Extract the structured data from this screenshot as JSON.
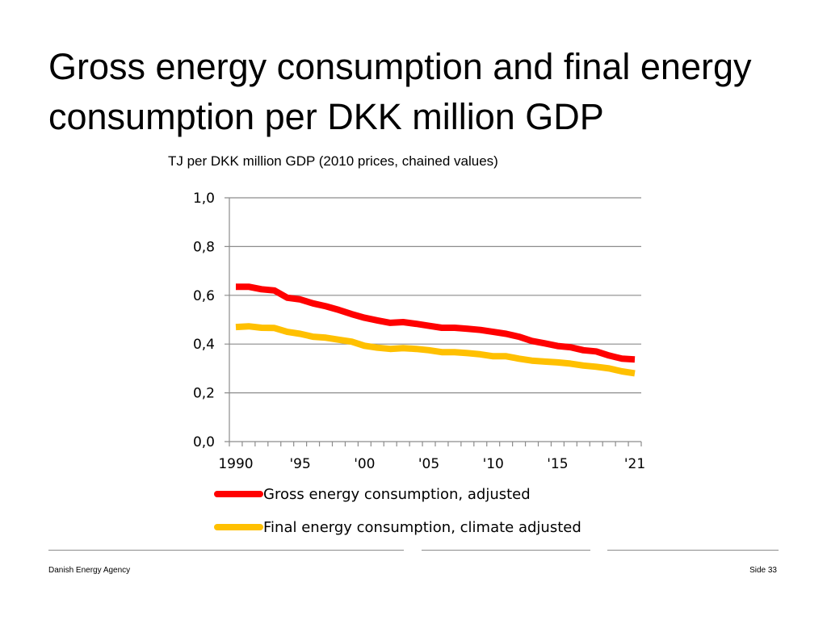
{
  "slide": {
    "title": "Gross energy consumption and final energy consumption per DKK million GDP",
    "footer_left": "Danish Energy Agency",
    "footer_right": "Side 33"
  },
  "chart_data": {
    "type": "line",
    "title": "TJ per DKK million GDP (2010 prices, chained values)",
    "xlabel": "",
    "ylabel": "",
    "ylim": [
      0,
      1.0
    ],
    "yticks": [
      0.0,
      0.2,
      0.4,
      0.6,
      0.8,
      1.0
    ],
    "ytick_labels": [
      "0,0",
      "0,2",
      "0,4",
      "0,6",
      "0,8",
      "1,0"
    ],
    "xticks": [
      1990,
      1995,
      2000,
      2005,
      2010,
      2015,
      2021
    ],
    "xtick_labels": [
      "1990",
      "'95",
      "'00",
      "'05",
      "'10",
      "'15",
      "'21"
    ],
    "grid": true,
    "x": [
      1990,
      1991,
      1992,
      1993,
      1994,
      1995,
      1996,
      1997,
      1998,
      1999,
      2000,
      2001,
      2002,
      2003,
      2004,
      2005,
      2006,
      2007,
      2008,
      2009,
      2010,
      2011,
      2012,
      2013,
      2014,
      2015,
      2016,
      2017,
      2018,
      2019,
      2020,
      2021
    ],
    "series": [
      {
        "name": "Gross energy consumption, adjusted",
        "color": "#ff0000",
        "values": [
          0.635,
          0.635,
          0.625,
          0.62,
          0.59,
          0.583,
          0.567,
          0.555,
          0.54,
          0.523,
          0.508,
          0.497,
          0.487,
          0.49,
          0.483,
          0.475,
          0.467,
          0.467,
          0.463,
          0.458,
          0.45,
          0.442,
          0.43,
          0.413,
          0.403,
          0.392,
          0.387,
          0.375,
          0.37,
          0.353,
          0.34,
          0.337
        ]
      },
      {
        "name": "Final energy consumption, climate adjusted",
        "color": "#ffc000",
        "values": [
          0.47,
          0.473,
          0.467,
          0.466,
          0.45,
          0.442,
          0.43,
          0.426,
          0.418,
          0.41,
          0.393,
          0.385,
          0.38,
          0.383,
          0.38,
          0.375,
          0.367,
          0.367,
          0.363,
          0.358,
          0.35,
          0.35,
          0.34,
          0.332,
          0.328,
          0.325,
          0.32,
          0.312,
          0.307,
          0.3,
          0.288,
          0.28
        ]
      }
    ]
  }
}
